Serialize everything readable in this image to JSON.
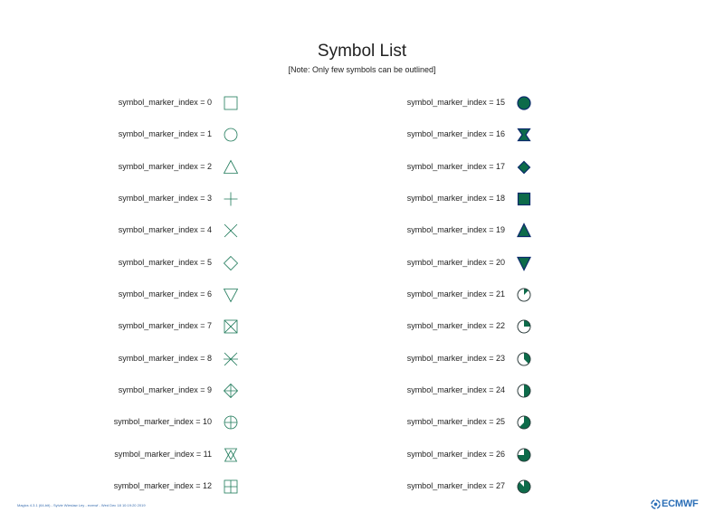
{
  "title": "Symbol List",
  "subtitle": "[Note: Only few symbols can be outlined]",
  "colors": {
    "marker_line": "#1f7a5a",
    "fill": "#0d6b4a",
    "outline": "#0b2a6b",
    "text": "#222222",
    "footer_blue": "#3b6fb0"
  },
  "left_column": [
    {
      "label": "symbol_marker_index = 0",
      "index": 0,
      "icon": "open-square-icon"
    },
    {
      "label": "symbol_marker_index = 1",
      "index": 1,
      "icon": "open-circle-icon"
    },
    {
      "label": "symbol_marker_index = 2",
      "index": 2,
      "icon": "open-triangle-up-icon"
    },
    {
      "label": "symbol_marker_index = 3",
      "index": 3,
      "icon": "plus-icon"
    },
    {
      "label": "symbol_marker_index = 4",
      "index": 4,
      "icon": "x-cross-icon"
    },
    {
      "label": "symbol_marker_index = 5",
      "index": 5,
      "icon": "open-diamond-icon"
    },
    {
      "label": "symbol_marker_index = 6",
      "index": 6,
      "icon": "open-triangle-down-icon"
    },
    {
      "label": "symbol_marker_index = 7",
      "index": 7,
      "icon": "square-with-x-icon"
    },
    {
      "label": "symbol_marker_index = 8",
      "index": 8,
      "icon": "asterisk-icon"
    },
    {
      "label": "symbol_marker_index = 9",
      "index": 9,
      "icon": "diamond-with-plus-icon"
    },
    {
      "label": "symbol_marker_index = 10",
      "index": 10,
      "icon": "circle-with-plus-icon"
    },
    {
      "label": "symbol_marker_index = 11",
      "index": 11,
      "icon": "star-of-david-icon"
    },
    {
      "label": "symbol_marker_index = 12",
      "index": 12,
      "icon": "square-with-plus-icon"
    }
  ],
  "right_column": [
    {
      "label": "symbol_marker_index = 15",
      "index": 15,
      "icon": "filled-circle-icon"
    },
    {
      "label": "symbol_marker_index = 16",
      "index": 16,
      "icon": "filled-hourglass-icon"
    },
    {
      "label": "symbol_marker_index = 17",
      "index": 17,
      "icon": "filled-diamond-icon"
    },
    {
      "label": "symbol_marker_index = 18",
      "index": 18,
      "icon": "filled-square-icon"
    },
    {
      "label": "symbol_marker_index = 19",
      "index": 19,
      "icon": "filled-triangle-up-icon"
    },
    {
      "label": "symbol_marker_index = 20",
      "index": 20,
      "icon": "filled-triangle-down-icon"
    },
    {
      "label": "symbol_marker_index = 21",
      "index": 21,
      "icon": "circle-fill-eighth-icon",
      "fill_fraction": 0.125
    },
    {
      "label": "symbol_marker_index = 22",
      "index": 22,
      "icon": "circle-fill-quarter-icon",
      "fill_fraction": 0.25
    },
    {
      "label": "symbol_marker_index = 23",
      "index": 23,
      "icon": "circle-fill-three-eighths-icon",
      "fill_fraction": 0.375
    },
    {
      "label": "symbol_marker_index = 24",
      "index": 24,
      "icon": "circle-fill-half-icon",
      "fill_fraction": 0.5
    },
    {
      "label": "symbol_marker_index = 25",
      "index": 25,
      "icon": "circle-fill-five-eighths-icon",
      "fill_fraction": 0.625
    },
    {
      "label": "symbol_marker_index = 26",
      "index": 26,
      "icon": "circle-fill-three-quarters-icon",
      "fill_fraction": 0.75
    },
    {
      "label": "symbol_marker_index = 27",
      "index": 27,
      "icon": "circle-fill-seven-eighths-icon",
      "fill_fraction": 0.875
    }
  ],
  "footer": {
    "left_text": "Magics 4.3.1 (64-bit) - Sylvie Wieslaw Ley - ecmwf - Wed Dec 18 10:19:20 2019",
    "logo_text": "ECMWF",
    "logo_icon": "ecmwf-logo-icon"
  }
}
